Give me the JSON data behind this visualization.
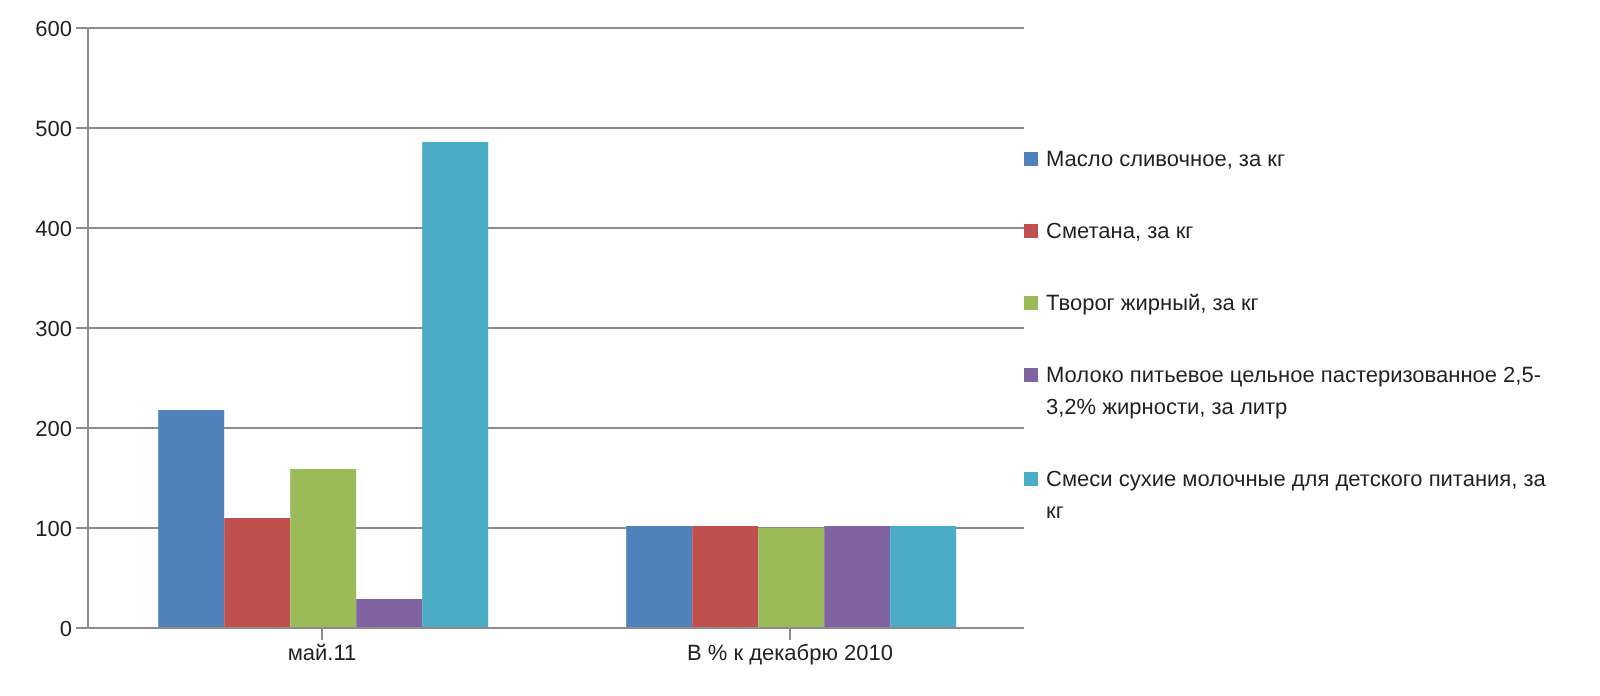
{
  "chart_data": {
    "type": "bar",
    "categories": [
      "май.11",
      "В % к декабрю 2010"
    ],
    "series": [
      {
        "name": "Масло сливочное, за кг",
        "color": "#4f81bd",
        "values": [
          218,
          102
        ]
      },
      {
        "name": "Сметана, за кг",
        "color": "#c0504d",
        "values": [
          110,
          102
        ]
      },
      {
        "name": "Творог жирный, за кг",
        "color": "#9bbb59",
        "values": [
          159,
          100
        ]
      },
      {
        "name": "Молоко питьевое цельное пастеризованное 2,5-3,2% жирности, за литр",
        "color": "#8064a2",
        "values": [
          29,
          102
        ]
      },
      {
        "name": "Смеси сухие молочные для детского питания, за кг",
        "color": "#4bacc6",
        "values": [
          486,
          102
        ]
      }
    ],
    "ylim": [
      0,
      600
    ],
    "yticks": [
      0,
      100,
      200,
      300,
      400,
      500,
      600
    ],
    "grid": "y",
    "legend": "right"
  }
}
